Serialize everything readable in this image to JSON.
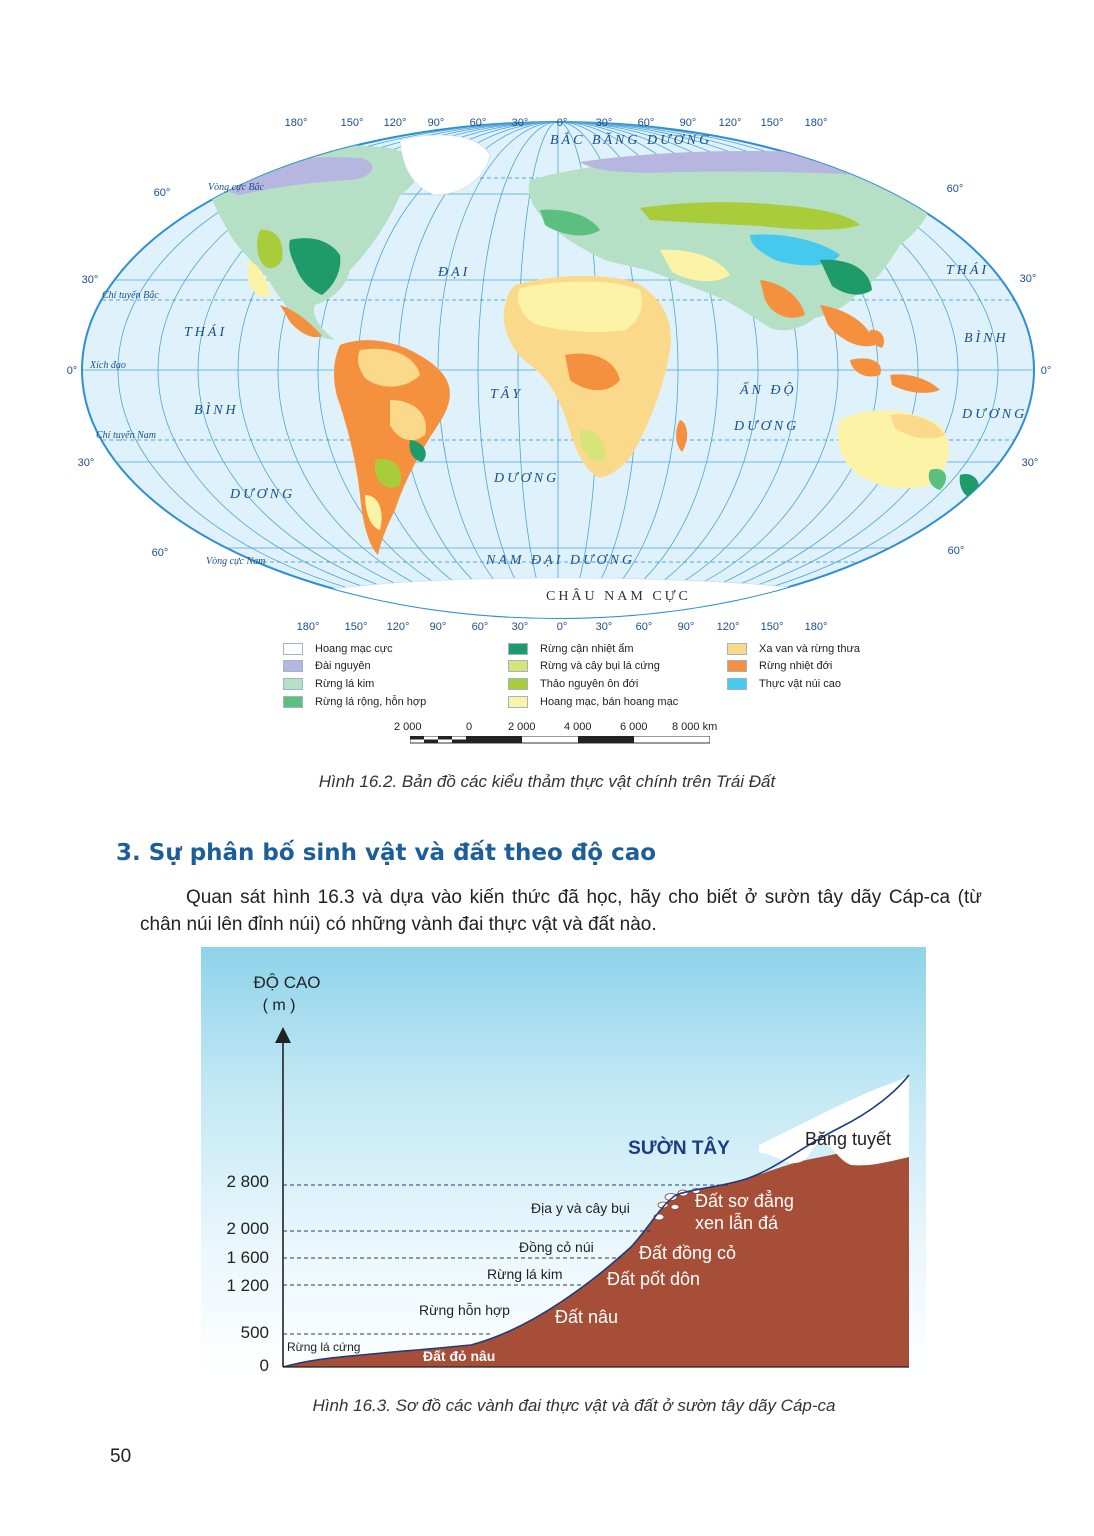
{
  "map": {
    "top_longitudes": [
      "180°",
      "150°",
      "120°",
      "90°",
      "60°",
      "30°",
      "0°",
      "30°",
      "60°",
      "90°",
      "120°",
      "150°",
      "180°"
    ],
    "bottom_longitudes": [
      "180°",
      "150°",
      "120°",
      "90°",
      "60°",
      "30°",
      "0°",
      "30°",
      "60°",
      "90°",
      "120°",
      "150°",
      "180°"
    ],
    "lat_left": [
      "60°",
      "30°",
      "0°",
      "30°",
      "60°"
    ],
    "lat_right": [
      "60°",
      "30°",
      "0°",
      "30°",
      "60°"
    ],
    "lines": {
      "arctic_circle": "Vòng cực Bắc",
      "tropic_north": "Chí tuyến Bắc",
      "equator": "Xích đạo",
      "tropic_south": "Chí tuyến Nam",
      "antarctic_circle": "Vòng cực Nam"
    },
    "oceans": {
      "arctic": "BẮC BĂNG DƯƠNG",
      "atlantic_1": "ĐẠI",
      "atlantic_2": "TÂY",
      "atlantic_3": "DƯƠNG",
      "indian_1": "ẤN ĐỘ",
      "indian_2": "DƯƠNG",
      "pacific_w1": "THÁI",
      "pacific_w2": "BÌNH",
      "pacific_w3": "DƯƠNG",
      "pacific_e1": "THÁI",
      "pacific_e2": "BÌNH",
      "pacific_e3": "DƯƠNG",
      "southern": "NAM ĐẠI DƯƠNG",
      "antarctica": "CHÂU NAM CỰC"
    }
  },
  "legend": [
    {
      "label": "Hoang mạc cực",
      "color": "#ffffff"
    },
    {
      "label": "Đài nguyên",
      "color": "#b7b6e0"
    },
    {
      "label": "Rừng lá kim",
      "color": "#b5e0c6"
    },
    {
      "label": "Rừng lá rộng, hỗn hợp",
      "color": "#5bbf7f"
    },
    {
      "label": "Rừng cận nhiệt ẩm",
      "color": "#1f9a6a"
    },
    {
      "label": "Rừng và cây bụi lá cứng",
      "color": "#d8e47a"
    },
    {
      "label": "Thảo nguyên ôn đới",
      "color": "#a9cc3a"
    },
    {
      "label": "Hoang mạc, bán hoang mạc",
      "color": "#fdf3a6"
    },
    {
      "label": "Xa van và rừng thưa",
      "color": "#fbd98a"
    },
    {
      "label": "Rừng nhiệt đới",
      "color": "#f5913e"
    },
    {
      "label": "Thực vật núi cao",
      "color": "#46c9ee"
    }
  ],
  "scale": {
    "labels": [
      "2 000",
      "0",
      "2 000",
      "4 000",
      "6 000",
      "8 000 km"
    ]
  },
  "caption_map": "Hình 16.2. Bản đồ các kiểu thảm thực vật chính trên Trái Đất",
  "heading": "3. Sự phân bố sinh vật và đất theo độ cao",
  "paragraph": "Quan sát hình 16.3 và dựa vào kiến thức đã học, hãy cho biết ở sườn tây dãy Cáp-ca (từ chân núi lên đỉnh núi) có những vành đai thực vật và đất nào.",
  "profile": {
    "axis_title": "ĐỘ CAO",
    "axis_unit": "( m )",
    "ticks": [
      "2 800",
      "2 000",
      "1 600",
      "1 200",
      "500",
      "0"
    ],
    "slope_title": "SƯỜN TÂY",
    "vegetation": [
      "Rừng lá cứng",
      "Rừng hỗn hợp",
      "Rừng lá kim",
      "Đồng cỏ núi",
      "Địa y và cây bụi",
      "Băng tuyết"
    ],
    "soils": [
      "Đất đỏ nâu",
      "Đất nâu",
      "Đất pốt dôn",
      "Đất đồng cỏ",
      "Đất sơ đẳng",
      "xen lẫn đá"
    ]
  },
  "caption_profile": "Hình 16.3. Sơ đồ các vành đai thực vật và đất ở sườn tây dãy Cáp-ca",
  "page_number": "50"
}
